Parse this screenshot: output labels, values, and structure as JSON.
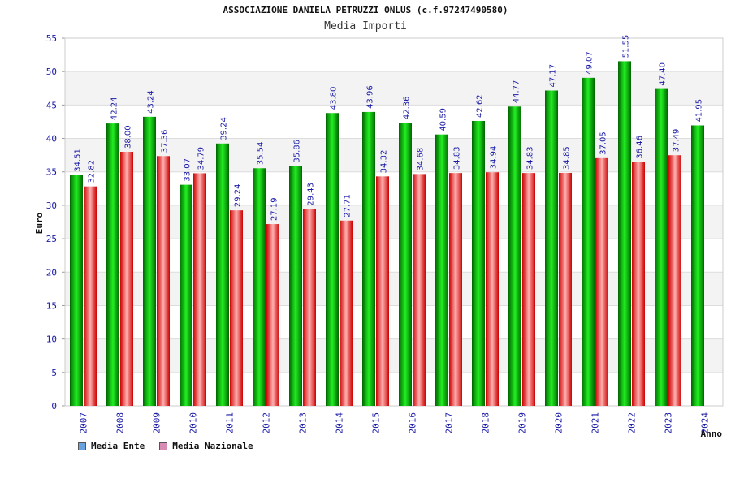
{
  "header": {
    "title": "ASSOCIAZIONE DANIELA PETRUZZI ONLUS (c.f.97247490580)",
    "subtitle": "Media Importi"
  },
  "chart_data": {
    "type": "bar",
    "ylabel": "Euro",
    "xlabel": "Anno",
    "ylim": [
      0,
      55
    ],
    "yticks": [
      0,
      5,
      10,
      15,
      20,
      25,
      30,
      35,
      40,
      45,
      50,
      55
    ],
    "grid": true,
    "legend_position": "bottom-left",
    "categories": [
      "2007",
      "2008",
      "2009",
      "2010",
      "2011",
      "2012",
      "2013",
      "2014",
      "2015",
      "2016",
      "2017",
      "2018",
      "2019",
      "2020",
      "2021",
      "2022",
      "2023",
      "2024"
    ],
    "series": [
      {
        "name": "Media Ente",
        "color": "#00aa00",
        "legend_color": "#66a3e0",
        "values": [
          34.51,
          42.24,
          43.24,
          33.07,
          39.24,
          35.54,
          35.86,
          43.8,
          43.96,
          42.36,
          40.59,
          42.62,
          44.77,
          47.17,
          49.07,
          51.55,
          47.4,
          41.95
        ]
      },
      {
        "name": "Media Nazionale",
        "color": "#e02020",
        "legend_color": "#d98cb3",
        "values": [
          32.82,
          38.0,
          37.36,
          34.79,
          29.24,
          27.19,
          29.43,
          27.71,
          34.32,
          34.68,
          34.83,
          34.94,
          34.83,
          34.85,
          37.05,
          36.46,
          37.49,
          null
        ]
      }
    ],
    "value_labels": [
      [
        "34.51",
        "42.24",
        "43.24",
        "33.07",
        "39.24",
        "35.54",
        "35.86",
        "43.80",
        "43.96",
        "42.36",
        "40.59",
        "42.62",
        "44.77",
        "47.17",
        "49.07",
        "51.55",
        "47.40",
        "41.95"
      ],
      [
        "32.82",
        "38.00",
        "37.36",
        "34.79",
        "29.24",
        "27.19",
        "29.43",
        "27.71",
        "34.32",
        "34.68",
        "34.83",
        "34.94",
        "34.83",
        "34.85",
        "37.05",
        "36.46",
        "37.49",
        ""
      ]
    ]
  }
}
